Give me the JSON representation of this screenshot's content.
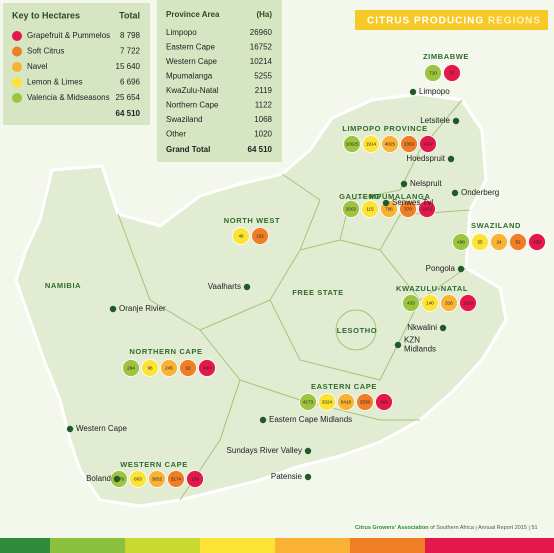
{
  "header": {
    "title": "CITRUS PRODUCING",
    "title_accent": "REGIONS"
  },
  "key": {
    "title": "Key to Hectares",
    "total_label": "Total",
    "rows": [
      {
        "label": "Grapefruit & Pummelos",
        "value": "8 798",
        "color": "#e4194b"
      },
      {
        "label": "Soft Citrus",
        "value": "7 722",
        "color": "#f07e26"
      },
      {
        "label": "Navel",
        "value": "15 640",
        "color": "#f9b233"
      },
      {
        "label": "Lemon & Limes",
        "value": "6 696",
        "color": "#fde333"
      },
      {
        "label": "Valencia & Midseasons",
        "value": "25 654",
        "color": "#9dc43f"
      }
    ],
    "total": "64 510"
  },
  "provinces": {
    "header": [
      "Province Area",
      "(Ha)"
    ],
    "rows": [
      [
        "Limpopo",
        "26960"
      ],
      [
        "Eastern Cape",
        "16752"
      ],
      [
        "Western Cape",
        "10214"
      ],
      [
        "Mpumalanga",
        "5255"
      ],
      [
        "KwaZulu-Natal",
        "2119"
      ],
      [
        "Northern Cape",
        "1122"
      ],
      [
        "Swaziland",
        "1068"
      ],
      [
        "Other",
        "1020"
      ]
    ],
    "total": [
      "Grand Total",
      "64 510"
    ]
  },
  "regions": [
    {
      "name": "ZIMBABWE",
      "circles": [
        {
          "value": "710",
          "color": "#9dc43f"
        },
        {
          "value": "37",
          "color": "#e4194b"
        }
      ]
    },
    {
      "name": "LIMPOPO PROVINCE",
      "circles": [
        {
          "value": "10025",
          "color": "#9dc43f"
        },
        {
          "value": "1914",
          "color": "#fde333"
        },
        {
          "value": "4025",
          "color": "#f9b233"
        },
        {
          "value": "1353",
          "color": "#f07e26"
        },
        {
          "value": "1407",
          "color": "#e4194b"
        }
      ]
    },
    {
      "name": "MPUMALANGA",
      "circles": [
        {
          "value": "2002",
          "color": "#9dc43f"
        },
        {
          "value": "115",
          "color": "#fde333"
        },
        {
          "value": "796",
          "color": "#f9b233"
        },
        {
          "value": "370",
          "color": "#f07e26"
        },
        {
          "value": "1972",
          "color": "#e4194b"
        }
      ]
    },
    {
      "name": "SWAZILAND",
      "circles": [
        {
          "value": "498",
          "color": "#9dc43f"
        },
        {
          "value": "55",
          "color": "#fde333"
        },
        {
          "value": "24",
          "color": "#f9b233"
        },
        {
          "value": "52",
          "color": "#f07e26"
        },
        {
          "value": "439",
          "color": "#e4194b"
        }
      ]
    },
    {
      "name": "KWAZULU-NATAL",
      "circles": [
        {
          "value": "433",
          "color": "#9dc43f"
        },
        {
          "value": "140",
          "color": "#fde333"
        },
        {
          "value": "316",
          "color": "#f9b233"
        },
        {
          "value": "1230",
          "color": "#e4194b"
        }
      ]
    },
    {
      "name": "NORTH WEST",
      "circles": [
        {
          "value": "46",
          "color": "#fde333"
        },
        {
          "value": "102",
          "color": "#f07e26"
        }
      ]
    },
    {
      "name": "NORTHERN CAPE",
      "circles": [
        {
          "value": "284",
          "color": "#9dc43f"
        },
        {
          "value": "98",
          "color": "#fde333"
        },
        {
          "value": "245",
          "color": "#f9b233"
        },
        {
          "value": "92",
          "color": "#f07e26"
        },
        {
          "value": "403",
          "color": "#e4194b"
        }
      ]
    },
    {
      "name": "EASTERN CAPE",
      "circles": [
        {
          "value": "4173",
          "color": "#9dc43f"
        },
        {
          "value": "3324",
          "color": "#fde333"
        },
        {
          "value": "6416",
          "color": "#f9b233"
        },
        {
          "value": "2538",
          "color": "#f07e26"
        },
        {
          "value": "301",
          "color": "#e4194b"
        }
      ]
    },
    {
      "name": "WESTERN CAPE",
      "circles": [
        {
          "value": "2276",
          "color": "#9dc43f"
        },
        {
          "value": "803",
          "color": "#fde333"
        },
        {
          "value": "3852",
          "color": "#f9b233"
        },
        {
          "value": "3174",
          "color": "#f07e26"
        },
        {
          "value": "109",
          "color": "#e4194b"
        }
      ]
    }
  ],
  "labels": [
    "GAUTENG",
    "FREE STATE",
    "LESOTHO",
    "NAMIBIA"
  ],
  "places": [
    [
      "Limpopo"
    ],
    [
      "Letsitele"
    ],
    [
      "Hoedspruit"
    ],
    [
      "Nelspruit"
    ],
    [
      "Senwes Tvl"
    ],
    [
      "Onderberg"
    ],
    [
      "Pongola"
    ],
    [
      "Vaalharts"
    ],
    [
      "Oranje Rivier"
    ],
    [
      "Nkwalini"
    ],
    [
      "KZN",
      "Midlands"
    ],
    [
      "Western Cape"
    ],
    [
      "Boland"
    ],
    [
      "Eastern Cape Midlands"
    ],
    [
      "Sundays River Valley"
    ],
    [
      "Patensie"
    ]
  ],
  "footer": {
    "org": "Citrus Growers' Association",
    "org_sub": "of Southern Africa",
    "report": "Annual Report 2015",
    "page": "51"
  }
}
